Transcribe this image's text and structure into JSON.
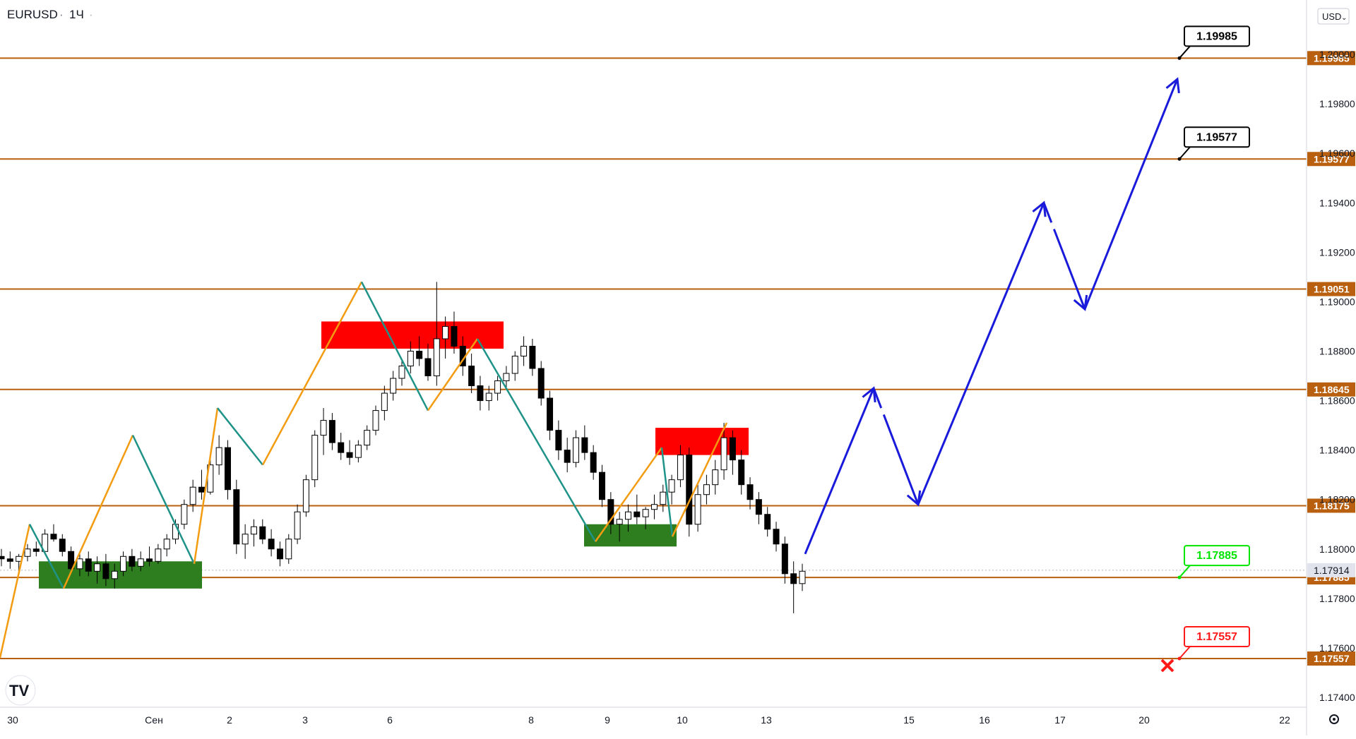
{
  "header": {
    "symbol": "EURUSD",
    "separator": "·",
    "interval": "1Ч",
    "dot": "·"
  },
  "currency_button": "USD",
  "logo": "TV",
  "colors": {
    "level": "#b8600f",
    "bull_candle": "#ffffff",
    "bear_candle": "#000000",
    "zigzag_up": "#f39c12",
    "zigzag_down": "#1f9388",
    "supply_zone": "#ff0000",
    "demand_zone": "#2e7d1e",
    "forecast": "#1a1adb",
    "current_price_bg": "#e0e3eb",
    "label_target": "#000000",
    "label_entry": "#00e600",
    "label_stop": "#ff1a1a"
  },
  "chart_data": {
    "type": "candlestick",
    "symbol": "EURUSD",
    "timeframe": "1Ч",
    "y_axis": {
      "range": [
        1.1736,
        1.2022
      ],
      "ticks": [
        "1.17400",
        "1.17600",
        "1.17800",
        "1.18000",
        "1.18200",
        "1.18400",
        "1.18600",
        "1.18800",
        "1.19000",
        "1.19200",
        "1.19400",
        "1.19600",
        "1.19800",
        "1.20000"
      ],
      "tick_values": [
        1.174,
        1.176,
        1.178,
        1.18,
        1.182,
        1.184,
        1.186,
        1.188,
        1.19,
        1.192,
        1.194,
        1.196,
        1.198,
        1.2
      ]
    },
    "x_axis": {
      "ticks": [
        "30",
        "Сен",
        "2",
        "3",
        "6",
        "8",
        "9",
        "10",
        "13",
        "15",
        "16",
        "17",
        "20",
        "22"
      ]
    },
    "horizontal_levels": [
      {
        "value": 1.19985,
        "label": "1.19985"
      },
      {
        "value": 1.19577,
        "label": "1.19577"
      },
      {
        "value": 1.19051,
        "label": "1.19051"
      },
      {
        "value": 1.18645,
        "label": "1.18645"
      },
      {
        "value": 1.18175,
        "label": "1.18175"
      },
      {
        "value": 1.17885,
        "label": "1.17885"
      },
      {
        "value": 1.17557,
        "label": "1.17557"
      }
    ],
    "current_price": {
      "value": 1.17914,
      "label": "1.17914"
    },
    "annotations": [
      {
        "label": "1.19985",
        "price": 1.19985,
        "kind": "target"
      },
      {
        "label": "1.19577",
        "price": 1.19577,
        "kind": "target"
      },
      {
        "label": "1.17885",
        "price": 1.17885,
        "kind": "entry"
      },
      {
        "label": "1.17557",
        "price": 1.17557,
        "kind": "stop"
      }
    ],
    "zones": [
      {
        "kind": "demand",
        "price_low": 1.1784,
        "price_high": 1.1795
      },
      {
        "kind": "supply",
        "price_low": 1.1881,
        "price_high": 1.1892
      },
      {
        "kind": "demand",
        "price_low": 1.1801,
        "price_high": 1.181
      },
      {
        "kind": "supply",
        "price_low": 1.1838,
        "price_high": 1.1849
      }
    ],
    "zigzag_prices": [
      1.1756,
      1.181,
      1.1784,
      1.1846,
      1.1794,
      1.1857,
      1.1834,
      1.1908,
      1.1856,
      1.1885,
      1.1803,
      1.1841,
      1.1805,
      1.1851
    ],
    "forecast_path_prices": [
      1.1798,
      1.1865,
      1.1818,
      1.194,
      1.1897,
      1.199
    ],
    "candles_ohlc": [
      [
        1.1797,
        1.18,
        1.1793,
        1.1796
      ],
      [
        1.1796,
        1.1799,
        1.1792,
        1.1795
      ],
      [
        1.1795,
        1.1798,
        1.1791,
        1.1797
      ],
      [
        1.1797,
        1.1802,
        1.1795,
        1.18
      ],
      [
        1.18,
        1.1803,
        1.1797,
        1.1799
      ],
      [
        1.1799,
        1.1808,
        1.1798,
        1.1806
      ],
      [
        1.1806,
        1.181,
        1.1803,
        1.1804
      ],
      [
        1.1804,
        1.1806,
        1.1797,
        1.1799
      ],
      [
        1.1799,
        1.1801,
        1.179,
        1.1792
      ],
      [
        1.1792,
        1.1799,
        1.1789,
        1.1796
      ],
      [
        1.1796,
        1.1799,
        1.1789,
        1.1791
      ],
      [
        1.1791,
        1.1797,
        1.1786,
        1.1794
      ],
      [
        1.1794,
        1.1798,
        1.1785,
        1.1788
      ],
      [
        1.1788,
        1.1794,
        1.1784,
        1.1791
      ],
      [
        1.1791,
        1.1799,
        1.1789,
        1.1797
      ],
      [
        1.1797,
        1.18,
        1.1791,
        1.1793
      ],
      [
        1.1793,
        1.1799,
        1.1791,
        1.1796
      ],
      [
        1.1796,
        1.1801,
        1.1793,
        1.1795
      ],
      [
        1.1795,
        1.1802,
        1.1794,
        1.18
      ],
      [
        1.18,
        1.1806,
        1.1797,
        1.1804
      ],
      [
        1.1804,
        1.1812,
        1.1802,
        1.181
      ],
      [
        1.181,
        1.182,
        1.1808,
        1.1818
      ],
      [
        1.1818,
        1.1828,
        1.1815,
        1.1825
      ],
      [
        1.1825,
        1.1832,
        1.182,
        1.1823
      ],
      [
        1.1823,
        1.1836,
        1.1822,
        1.1834
      ],
      [
        1.1834,
        1.1846,
        1.183,
        1.1841
      ],
      [
        1.1841,
        1.1844,
        1.182,
        1.1824
      ],
      [
        1.1824,
        1.1828,
        1.1798,
        1.1802
      ],
      [
        1.1802,
        1.181,
        1.1796,
        1.1806
      ],
      [
        1.1806,
        1.1812,
        1.1801,
        1.1809
      ],
      [
        1.1809,
        1.1812,
        1.1802,
        1.1804
      ],
      [
        1.1804,
        1.1808,
        1.1797,
        1.18
      ],
      [
        1.18,
        1.1803,
        1.1793,
        1.1796
      ],
      [
        1.1796,
        1.1806,
        1.1794,
        1.1804
      ],
      [
        1.1804,
        1.1818,
        1.1802,
        1.1815
      ],
      [
        1.1815,
        1.183,
        1.1813,
        1.1828
      ],
      [
        1.1828,
        1.1848,
        1.1825,
        1.1846
      ],
      [
        1.1846,
        1.1857,
        1.1838,
        1.1852
      ],
      [
        1.1852,
        1.1855,
        1.184,
        1.1843
      ],
      [
        1.1843,
        1.1847,
        1.1836,
        1.1839
      ],
      [
        1.1839,
        1.1844,
        1.1834,
        1.1837
      ],
      [
        1.1837,
        1.1844,
        1.1835,
        1.1842
      ],
      [
        1.1842,
        1.185,
        1.184,
        1.1848
      ],
      [
        1.1848,
        1.1858,
        1.1846,
        1.1856
      ],
      [
        1.1856,
        1.1866,
        1.1852,
        1.1863
      ],
      [
        1.1863,
        1.1872,
        1.186,
        1.1869
      ],
      [
        1.1869,
        1.1876,
        1.1866,
        1.1874
      ],
      [
        1.1874,
        1.1884,
        1.1871,
        1.188
      ],
      [
        1.188,
        1.1886,
        1.1874,
        1.1877
      ],
      [
        1.1877,
        1.1883,
        1.1868,
        1.187
      ],
      [
        1.187,
        1.1908,
        1.1866,
        1.1885
      ],
      [
        1.1885,
        1.1894,
        1.1877,
        1.189
      ],
      [
        1.189,
        1.1896,
        1.1879,
        1.1882
      ],
      [
        1.1882,
        1.1886,
        1.187,
        1.1874
      ],
      [
        1.1874,
        1.1879,
        1.1863,
        1.1866
      ],
      [
        1.1866,
        1.187,
        1.1856,
        1.186
      ],
      [
        1.186,
        1.1866,
        1.1856,
        1.1863
      ],
      [
        1.1863,
        1.187,
        1.186,
        1.1868
      ],
      [
        1.1868,
        1.1874,
        1.1865,
        1.1871
      ],
      [
        1.1871,
        1.188,
        1.1868,
        1.1878
      ],
      [
        1.1878,
        1.1886,
        1.1874,
        1.1882
      ],
      [
        1.1882,
        1.1885,
        1.187,
        1.1873
      ],
      [
        1.1873,
        1.1876,
        1.1858,
        1.1861
      ],
      [
        1.1861,
        1.1864,
        1.1844,
        1.1848
      ],
      [
        1.1848,
        1.1852,
        1.1836,
        1.184
      ],
      [
        1.184,
        1.1845,
        1.1831,
        1.1835
      ],
      [
        1.1835,
        1.1848,
        1.1833,
        1.1845
      ],
      [
        1.1845,
        1.185,
        1.1836,
        1.1839
      ],
      [
        1.1839,
        1.1842,
        1.1828,
        1.1831
      ],
      [
        1.1831,
        1.1834,
        1.1817,
        1.182
      ],
      [
        1.182,
        1.1823,
        1.1806,
        1.181
      ],
      [
        1.181,
        1.1815,
        1.1803,
        1.1812
      ],
      [
        1.1812,
        1.1818,
        1.1807,
        1.1815
      ],
      [
        1.1815,
        1.1822,
        1.181,
        1.1813
      ],
      [
        1.1813,
        1.1817,
        1.1808,
        1.1816
      ],
      [
        1.1816,
        1.1822,
        1.1812,
        1.1818
      ],
      [
        1.1818,
        1.1826,
        1.1815,
        1.1823
      ],
      [
        1.1823,
        1.183,
        1.1818,
        1.1828
      ],
      [
        1.1828,
        1.1842,
        1.1825,
        1.1838
      ],
      [
        1.1838,
        1.1841,
        1.1805,
        1.181
      ],
      [
        1.181,
        1.1826,
        1.1807,
        1.1822
      ],
      [
        1.1822,
        1.183,
        1.1818,
        1.1826
      ],
      [
        1.1826,
        1.1836,
        1.1822,
        1.1832
      ],
      [
        1.1832,
        1.1851,
        1.1828,
        1.1845
      ],
      [
        1.1845,
        1.1848,
        1.183,
        1.1836
      ],
      [
        1.1836,
        1.184,
        1.1822,
        1.1826
      ],
      [
        1.1826,
        1.1829,
        1.1816,
        1.182
      ],
      [
        1.182,
        1.1823,
        1.181,
        1.1814
      ],
      [
        1.1814,
        1.1817,
        1.1805,
        1.1808
      ],
      [
        1.1808,
        1.1811,
        1.1799,
        1.1802
      ],
      [
        1.1802,
        1.1805,
        1.1786,
        1.179
      ],
      [
        1.179,
        1.1795,
        1.1774,
        1.1786
      ],
      [
        1.1786,
        1.1794,
        1.1783,
        1.1791
      ]
    ]
  }
}
